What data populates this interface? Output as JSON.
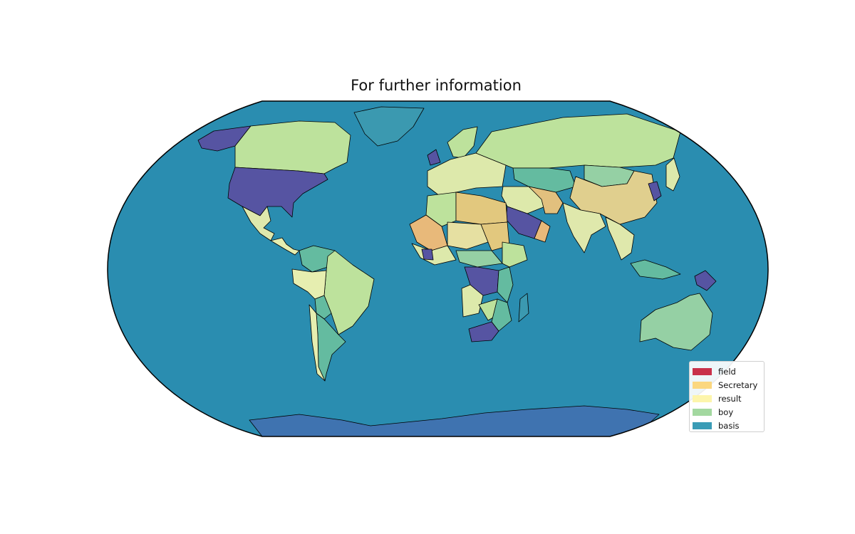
{
  "map": {
    "title": "For further information",
    "projection": "Robinson",
    "ocean_color": "#2a8db0",
    "antarctica_color": "#3f73b0",
    "border_color": "#000000"
  },
  "legend": {
    "placement": "lower-right",
    "items": [
      {
        "label": "field",
        "color": "#c9314a"
      },
      {
        "label": "Secretary",
        "color": "#fbd77f"
      },
      {
        "label": "result",
        "color": "#fdf5ac"
      },
      {
        "label": "boy",
        "color": "#a3d8a0"
      },
      {
        "label": "basis",
        "color": "#3a9cb6"
      }
    ]
  },
  "regions": [
    {
      "name": "alaska",
      "color": "#5654a2"
    },
    {
      "name": "canada",
      "color": "#bde29c"
    },
    {
      "name": "greenland",
      "color": "#3b99b0"
    },
    {
      "name": "usa",
      "color": "#5654a2"
    },
    {
      "name": "mexico",
      "color": "#dfe8ac"
    },
    {
      "name": "central-america",
      "color": "#e6eeb0"
    },
    {
      "name": "colombia-venezuela",
      "color": "#64bba0"
    },
    {
      "name": "peru",
      "color": "#e6eeb0"
    },
    {
      "name": "brazil",
      "color": "#bde29c"
    },
    {
      "name": "bolivia",
      "color": "#64bba0"
    },
    {
      "name": "argentina",
      "color": "#64bba0"
    },
    {
      "name": "chile",
      "color": "#e6eeb0"
    },
    {
      "name": "europe",
      "color": "#dde9ab"
    },
    {
      "name": "scandinavia",
      "color": "#bde29c"
    },
    {
      "name": "uk",
      "color": "#5654a2"
    },
    {
      "name": "russia",
      "color": "#bde29c"
    },
    {
      "name": "kazakhstan",
      "color": "#64bba0"
    },
    {
      "name": "mongolia",
      "color": "#95d0a4"
    },
    {
      "name": "china",
      "color": "#e0cf8e"
    },
    {
      "name": "india",
      "color": "#dfe8ac"
    },
    {
      "name": "iran",
      "color": "#e2c07e"
    },
    {
      "name": "middle-east",
      "color": "#dde9ab"
    },
    {
      "name": "saudi-arabia",
      "color": "#5654a2"
    },
    {
      "name": "oman-yemen",
      "color": "#e8b97a"
    },
    {
      "name": "north-africa-west",
      "color": "#bde29c"
    },
    {
      "name": "mali-mauritania",
      "color": "#e8b97a"
    },
    {
      "name": "libya-egypt",
      "color": "#e2c87e"
    },
    {
      "name": "niger-chad",
      "color": "#e6e0a2"
    },
    {
      "name": "sudan",
      "color": "#e2c87e"
    },
    {
      "name": "west-africa",
      "color": "#dde9ab"
    },
    {
      "name": "ivory-coast",
      "color": "#5654a2"
    },
    {
      "name": "central-african",
      "color": "#95d0a4"
    },
    {
      "name": "ethiopia",
      "color": "#bde29c"
    },
    {
      "name": "congo-drc",
      "color": "#5654a2"
    },
    {
      "name": "angola",
      "color": "#dde9ab"
    },
    {
      "name": "tanzania-kenya",
      "color": "#64bba0"
    },
    {
      "name": "zambia",
      "color": "#bde29c"
    },
    {
      "name": "mozambique",
      "color": "#64bba0"
    },
    {
      "name": "south-africa",
      "color": "#5654a2"
    },
    {
      "name": "madagascar",
      "color": "#3b99b0"
    },
    {
      "name": "southeast-asia",
      "color": "#dfe8ac"
    },
    {
      "name": "indonesia",
      "color": "#64bba0"
    },
    {
      "name": "papua",
      "color": "#5654a2"
    },
    {
      "name": "japan",
      "color": "#dde9ab"
    },
    {
      "name": "korea",
      "color": "#5654a2"
    },
    {
      "name": "australia",
      "color": "#95d0a4"
    },
    {
      "name": "new-zealand",
      "color": "#95d0a4"
    },
    {
      "name": "antarctica",
      "color": "#3f73b0"
    }
  ]
}
